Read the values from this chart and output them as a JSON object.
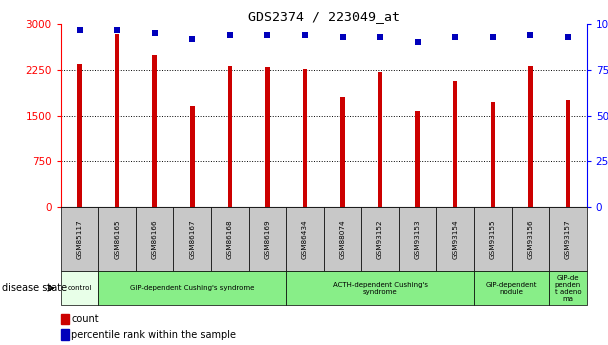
{
  "title": "GDS2374 / 223049_at",
  "samples": [
    "GSM85117",
    "GSM86165",
    "GSM86166",
    "GSM86167",
    "GSM86168",
    "GSM86169",
    "GSM86434",
    "GSM88074",
    "GSM93152",
    "GSM93153",
    "GSM93154",
    "GSM93155",
    "GSM93156",
    "GSM93157"
  ],
  "counts": [
    2350,
    2840,
    2490,
    1650,
    2310,
    2290,
    2260,
    1810,
    2210,
    1570,
    2060,
    1730,
    2310,
    1750
  ],
  "percentiles": [
    97,
    97,
    95,
    92,
    94,
    94,
    94,
    93,
    93,
    90,
    93,
    93,
    94,
    93
  ],
  "ylim_left": [
    0,
    3000
  ],
  "ylim_right": [
    0,
    100
  ],
  "yticks_left": [
    0,
    750,
    1500,
    2250,
    3000
  ],
  "yticks_right": [
    0,
    25,
    50,
    75,
    100
  ],
  "bar_color": "#cc0000",
  "dot_color": "#0000bb",
  "tick_bg_color": "#c8c8c8",
  "disease_groups": [
    {
      "label": "control",
      "start": 0,
      "end": 1,
      "color": "#e8ffe8"
    },
    {
      "label": "GIP-dependent Cushing's syndrome",
      "start": 1,
      "end": 6,
      "color": "#88ee88"
    },
    {
      "label": "ACTH-dependent Cushing's\nsyndrome",
      "start": 6,
      "end": 11,
      "color": "#88ee88"
    },
    {
      "label": "GIP-dependent\nnodule",
      "start": 11,
      "end": 13,
      "color": "#88ee88"
    },
    {
      "label": "GIP-de\npenden\nt adeno\nma",
      "start": 13,
      "end": 14,
      "color": "#88ee88"
    }
  ]
}
